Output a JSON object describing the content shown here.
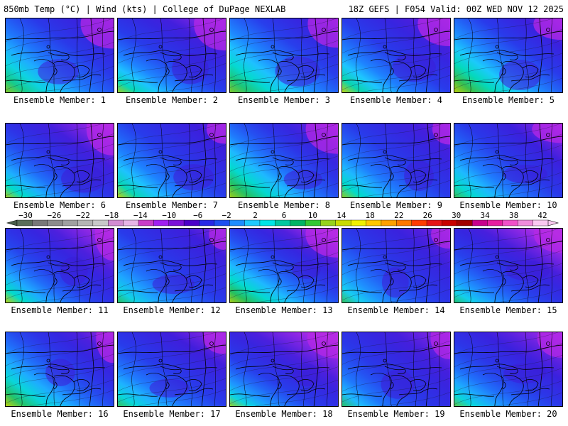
{
  "header": {
    "left": "850mb Temp (°C) | Wind (kts) | College of DuPage NEXLAB",
    "right": "18Z GEFS | F054 Valid: 00Z WED NOV 12 2025"
  },
  "members": [
    "Ensemble Member: 1",
    "Ensemble Member: 2",
    "Ensemble Member: 3",
    "Ensemble Member: 4",
    "Ensemble Member: 5",
    "Ensemble Member: 6",
    "Ensemble Member: 7",
    "Ensemble Member: 8",
    "Ensemble Member: 9",
    "Ensemble Member: 10",
    "Ensemble Member: 11",
    "Ensemble Member: 12",
    "Ensemble Member: 13",
    "Ensemble Member: 14",
    "Ensemble Member: 15",
    "Ensemble Member: 16",
    "Ensemble Member: 17",
    "Ensemble Member: 18",
    "Ensemble Member: 19",
    "Ensemble Member: 20"
  ],
  "colorbar": {
    "tick_labels": [
      "−30",
      "−26",
      "−22",
      "−18",
      "−14",
      "−10",
      "−6",
      "−2",
      "2",
      "6",
      "10",
      "14",
      "18",
      "22",
      "26",
      "30",
      "34",
      "38",
      "42"
    ],
    "colors": [
      "#5a6e5a",
      "#787878",
      "#8c8c8c",
      "#a0a0a0",
      "#b4b4b4",
      "#c8c8c8",
      "#d28cd2",
      "#e6b4e6",
      "#c83cc8",
      "#a020f0",
      "#7a10d8",
      "#4b00c8",
      "#2828e6",
      "#1e50f0",
      "#1e8cff",
      "#1ec8ff",
      "#00e6e6",
      "#00c8a0",
      "#00b464",
      "#32c832",
      "#96d21e",
      "#c8dc00",
      "#f0f000",
      "#ffc800",
      "#ffa000",
      "#ff7800",
      "#ff3c00",
      "#e61414",
      "#c80000",
      "#a00000",
      "#c8008c",
      "#e61ea0",
      "#f050c8",
      "#f08cdc",
      "#fac8f0"
    ]
  }
}
